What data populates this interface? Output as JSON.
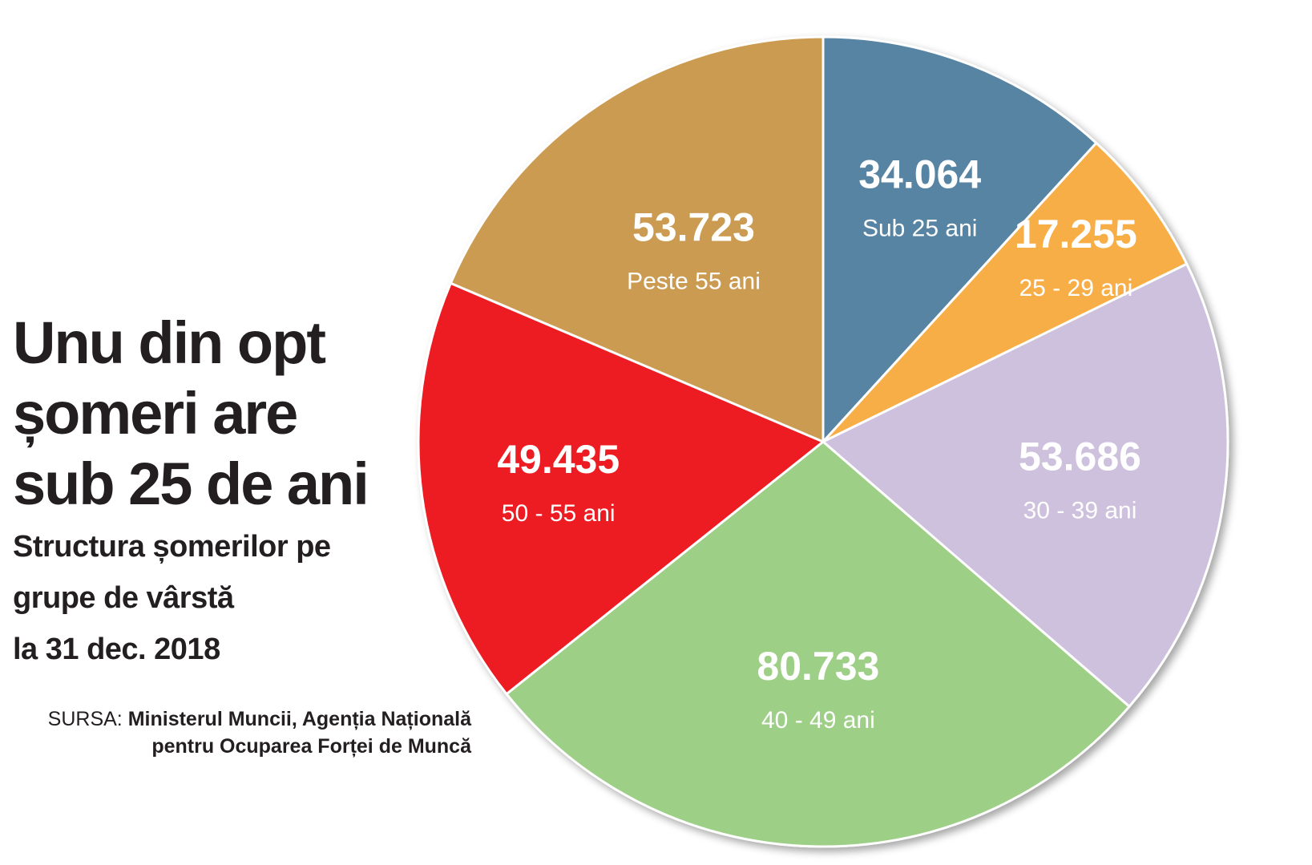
{
  "title_lines": [
    "Unu din opt",
    "șomeri are",
    "sub 25 de ani"
  ],
  "subtitle_lines": [
    "Structura șomerilor pe",
    "grupe de vârstă",
    "la 31 dec. 2018"
  ],
  "source": {
    "label": "SURSA:",
    "line1": "Ministerul Muncii, Agenția Națională",
    "line2": "pentru Ocuparea Forței de Muncă"
  },
  "chart_data": {
    "type": "pie",
    "slices": [
      {
        "label": "Sub 25 ani",
        "value": 34064,
        "value_text": "34.064",
        "color": "#5884a4"
      },
      {
        "label": "25 - 29 ani",
        "value": 17255,
        "value_text": "17.255",
        "color": "#f8ae47"
      },
      {
        "label": "30 - 39 ani",
        "value": 53686,
        "value_text": "53.686",
        "color": "#cdc1dd"
      },
      {
        "label": "40 - 49 ani",
        "value": 80733,
        "value_text": "80.733",
        "color": "#9ecf87"
      },
      {
        "label": "50 - 55 ani",
        "value": 49435,
        "value_text": "49.435",
        "color": "#ed1c24"
      },
      {
        "label": "Peste 55 ani",
        "value": 53723,
        "value_text": "53.723",
        "color": "#cb9b51"
      }
    ]
  }
}
